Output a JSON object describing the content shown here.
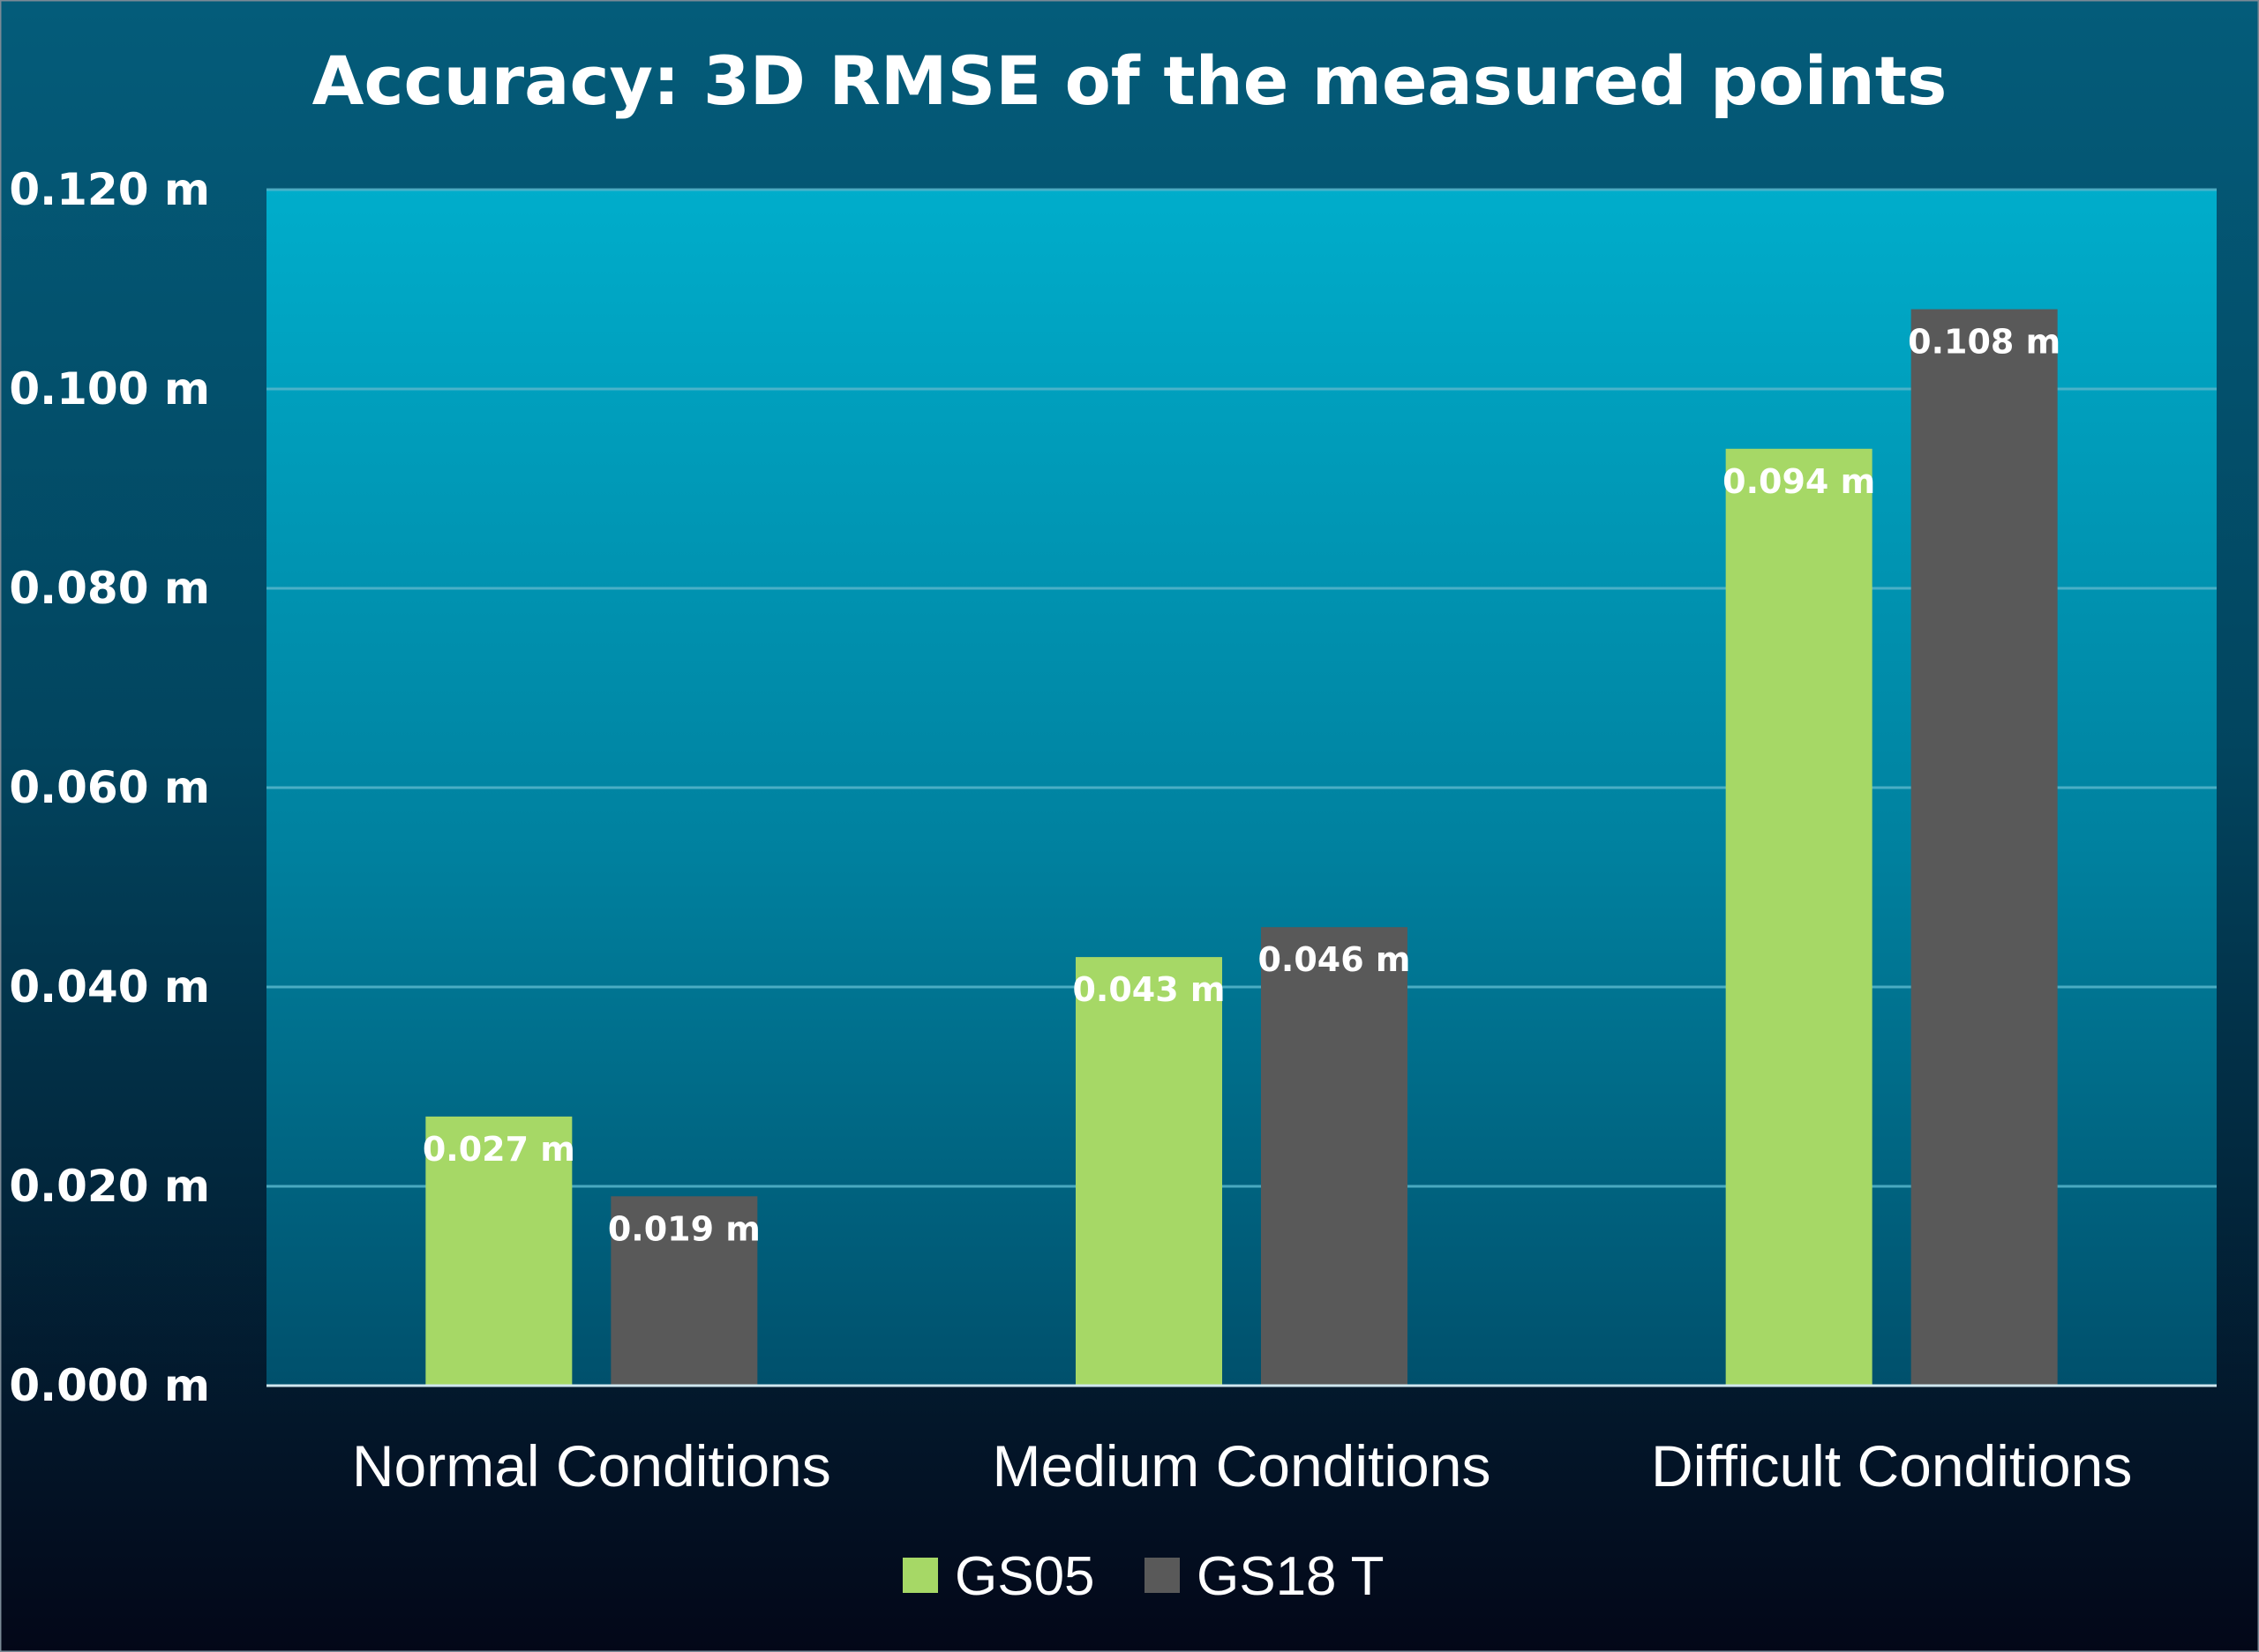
{
  "chart_data": {
    "type": "bar",
    "title": "Accuracy: 3D RMSE of the measured points",
    "xlabel": "",
    "ylabel": "",
    "categories": [
      "Normal Conditions",
      "Medium Conditions",
      "Difficult Conditions"
    ],
    "series": [
      {
        "name": "GS05",
        "color": "#a6d866",
        "values": [
          0.027,
          0.043,
          0.094
        ],
        "labels": [
          "0.027 m",
          "0.043 m",
          "0.094 m"
        ]
      },
      {
        "name": "GS18 T",
        "color": "#595959",
        "values": [
          0.019,
          0.046,
          0.108
        ],
        "labels": [
          "0.019 m",
          "0.046 m",
          "0.108 m"
        ]
      }
    ],
    "ylim": [
      0,
      0.12
    ],
    "yticks": [
      0,
      0.02,
      0.04,
      0.06,
      0.08,
      0.1,
      0.12
    ],
    "ytick_labels": [
      "0.000 m",
      "0.020 m",
      "0.040 m",
      "0.060 m",
      "0.080 m",
      "0.100 m",
      "0.120 m"
    ],
    "grid": true,
    "legend": "bottom-center"
  },
  "colors": {
    "background_top": "#045c7a",
    "background_bottom": "#030718",
    "plot_top": "#00adcb",
    "plot_bottom": "#00506c",
    "gridline": "#58b6cc",
    "axis_line": "#cfe6ee",
    "text": "#ffffff"
  }
}
